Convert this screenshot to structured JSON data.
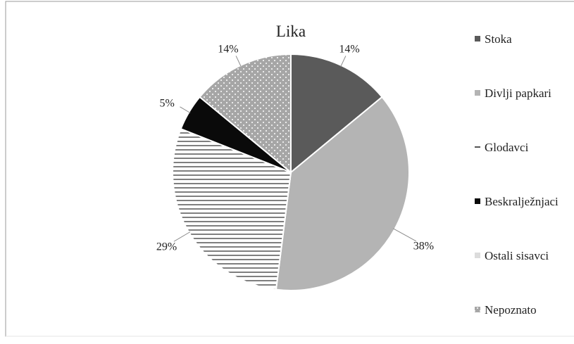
{
  "chart_data": {
    "type": "pie",
    "title": "Lika",
    "slices": [
      {
        "label": "Stoka",
        "value": 14,
        "value_label": "14%",
        "color": "#5a5a5a",
        "pattern": "solid"
      },
      {
        "label": "Divlji papkari",
        "value": 38,
        "value_label": "38%",
        "color": "#b4b4b4",
        "pattern": "solid"
      },
      {
        "label": "Glodavci",
        "value": 29,
        "value_label": "29%",
        "color": "#ffffff",
        "pattern": "horizontal-lines"
      },
      {
        "label": "Beskralježnjaci",
        "value": 5,
        "value_label": "5%",
        "color": "#0a0a0a",
        "pattern": "solid"
      },
      {
        "label": "Ostali sisavci",
        "value": 0,
        "value_label": "",
        "color": "#dcdcdc",
        "pattern": "solid"
      },
      {
        "label": "Nepoznato",
        "value": 14,
        "value_label": "14%",
        "color": "#a8a8a8",
        "pattern": "dots"
      }
    ],
    "legend_position": "right",
    "legend": [
      "Stoka",
      "Divlji papkari",
      "Glodavci",
      "Beskralježnjaci",
      "Ostali sisavci",
      "Nepoznato"
    ]
  }
}
